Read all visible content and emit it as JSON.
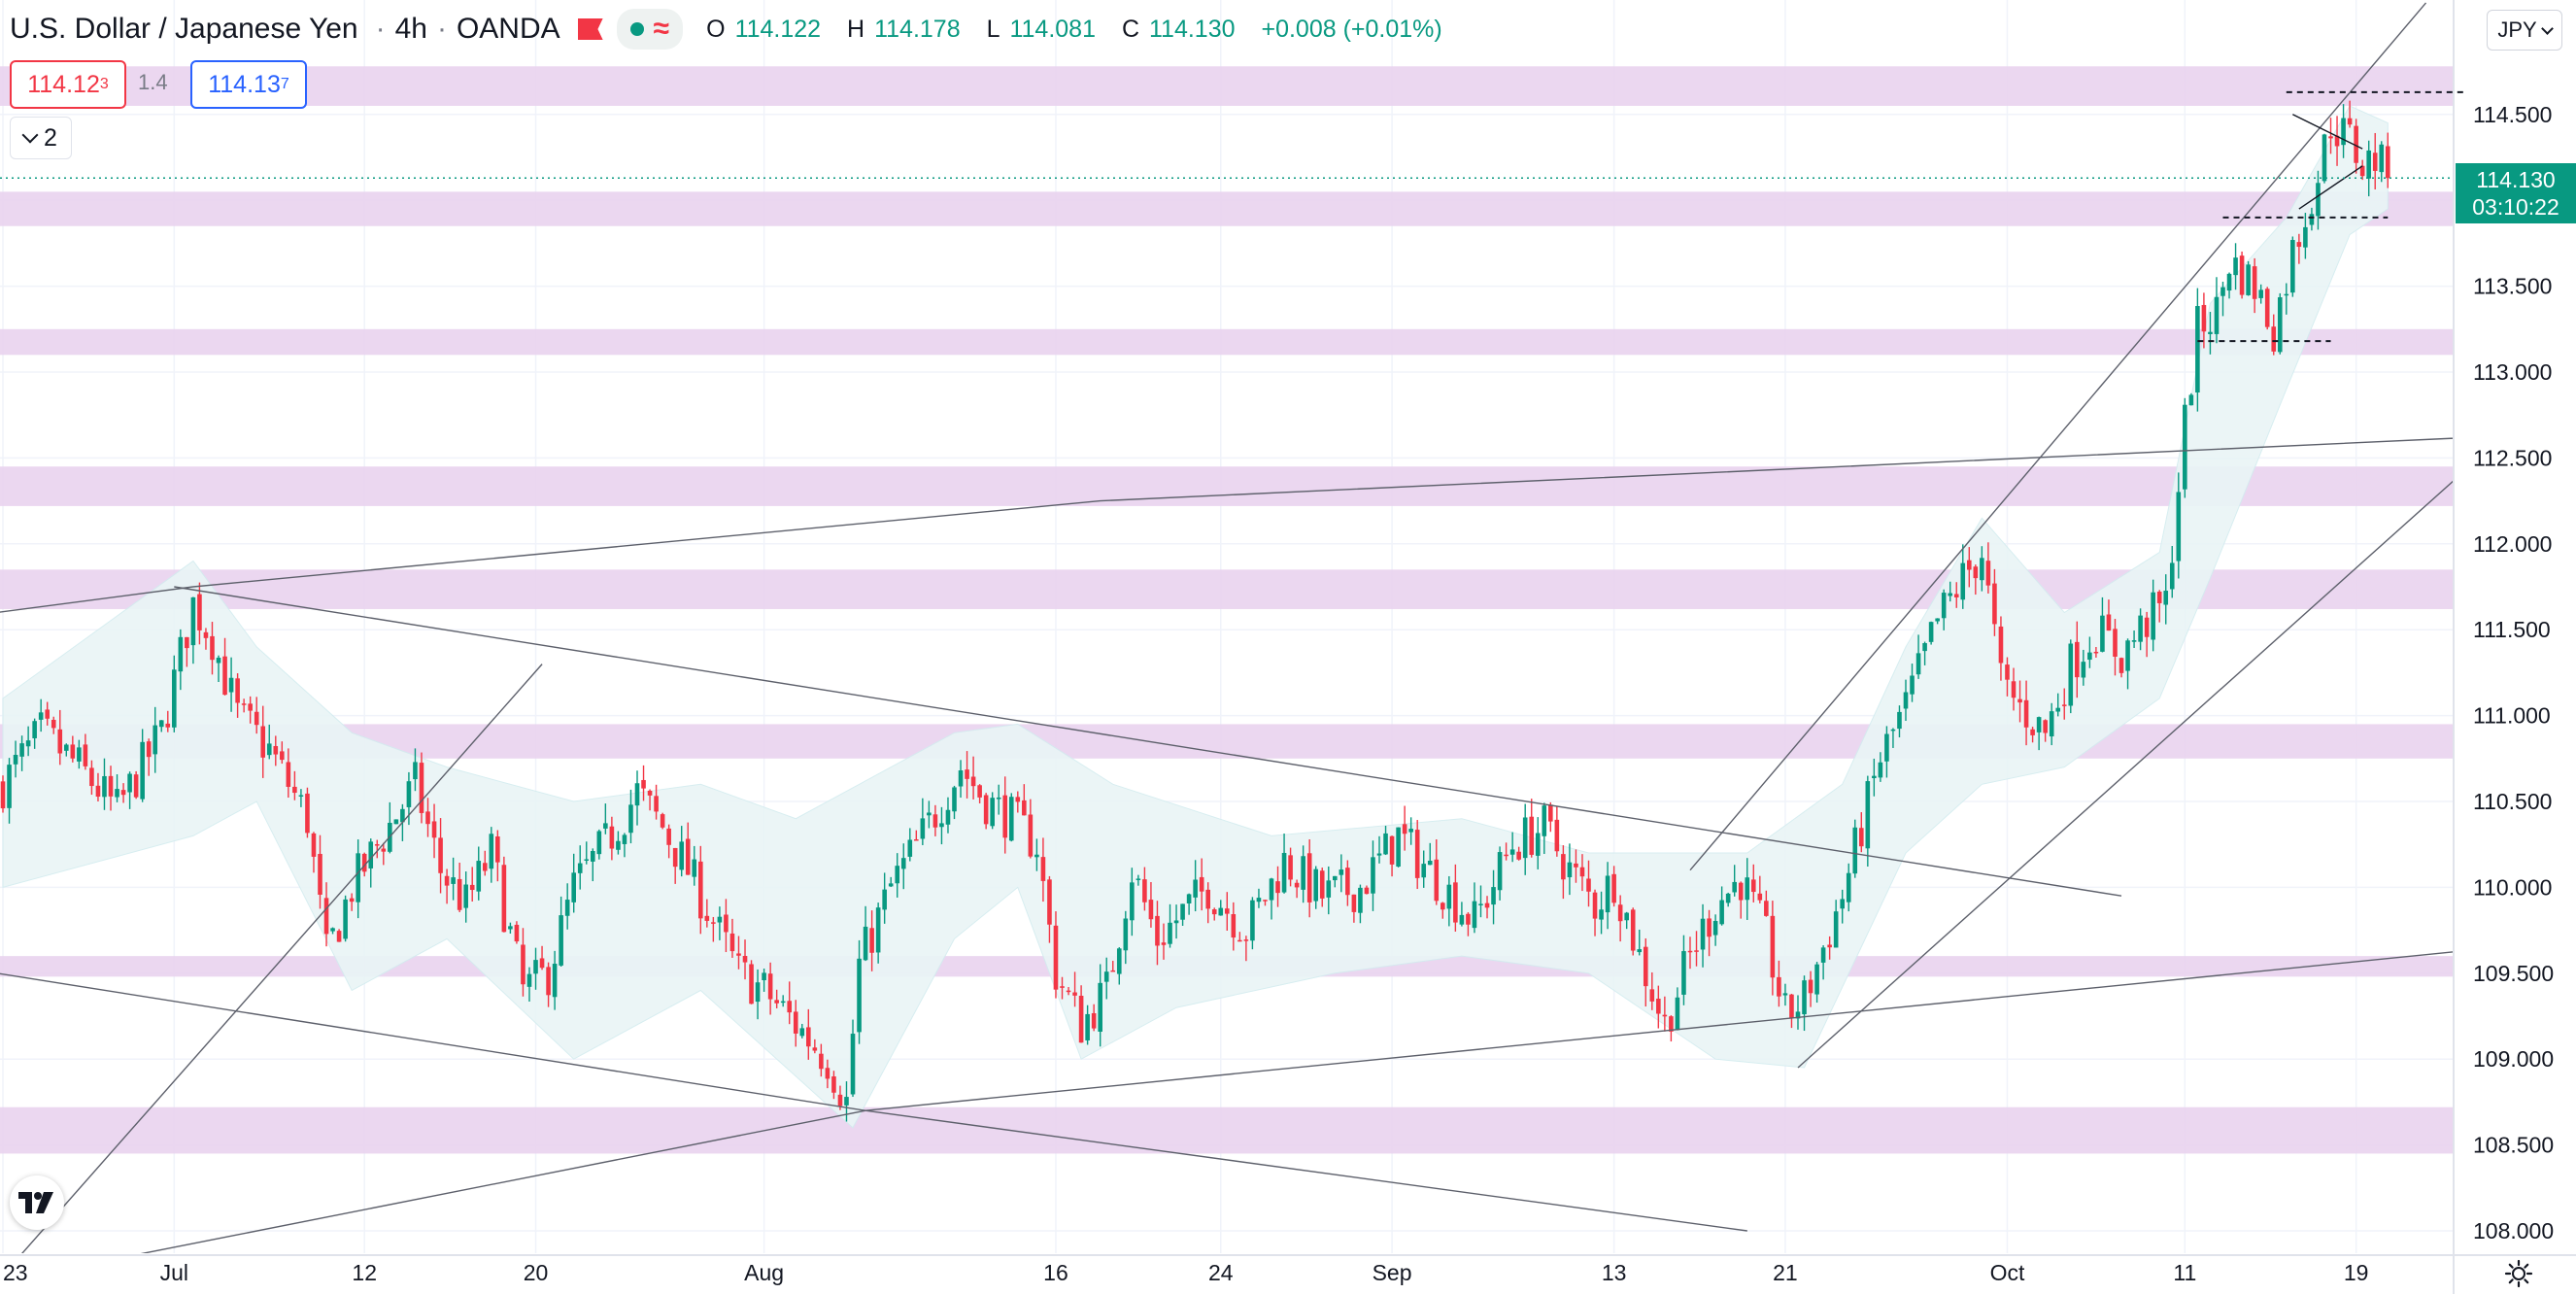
{
  "header": {
    "symbol": "U.S. Dollar / Japanese Yen",
    "interval": "4h",
    "broker": "OANDA",
    "open_label": "O",
    "open": "114.122",
    "high_label": "H",
    "high": "114.178",
    "low_label": "L",
    "low": "114.081",
    "close_label": "C",
    "close": "114.130",
    "change": "+0.008 (+0.01%)"
  },
  "quote": {
    "sell": "114.12",
    "sell_sup": "3",
    "spread": "1.4",
    "buy": "114.13",
    "buy_sup": "7"
  },
  "indicator_count": "2",
  "currency_button": "JPY",
  "price_label": {
    "price": "114.130",
    "countdown": "03:10:22"
  },
  "colors": {
    "up": "#089981",
    "down": "#f23645",
    "zone": "#e9d3ee",
    "band": "#e9f5f6",
    "line": "#787b86"
  },
  "icons": [
    "tradingview-logo-icon",
    "settings-gear-icon",
    "flag-icon",
    "chevron-down-icon"
  ],
  "chart_data": {
    "type": "candlestick",
    "title": "U.S. Dollar / Japanese Yen, 4h, OANDA",
    "xlabel": "",
    "ylabel": "",
    "ylim": [
      107.95,
      115.1
    ],
    "yticks": [
      "108.000",
      "108.500",
      "109.000",
      "109.500",
      "110.000",
      "110.500",
      "111.000",
      "111.500",
      "112.000",
      "112.500",
      "113.000",
      "113.500",
      "114.000",
      "114.500"
    ],
    "xticks": [
      "23",
      "Jul",
      "12",
      "20",
      "Aug",
      "16",
      "24",
      "Sep",
      "13",
      "21",
      "Oct",
      "11",
      "19"
    ],
    "xtick_index": [
      0,
      27,
      57,
      84,
      120,
      166,
      192,
      219,
      254,
      281,
      316,
      344,
      371
    ],
    "bars_total": 407,
    "current_price": 114.13,
    "path": [
      [
        0,
        110.6
      ],
      [
        6,
        110.9
      ],
      [
        12,
        110.7
      ],
      [
        18,
        110.45
      ],
      [
        25,
        110.9
      ],
      [
        30,
        111.65
      ],
      [
        33,
        111.45
      ],
      [
        37,
        111.0
      ],
      [
        42,
        110.8
      ],
      [
        48,
        110.4
      ],
      [
        51,
        109.6
      ],
      [
        55,
        110.0
      ],
      [
        60,
        110.3
      ],
      [
        65,
        110.6
      ],
      [
        69,
        110.1
      ],
      [
        73,
        109.9
      ],
      [
        77,
        110.2
      ],
      [
        82,
        109.4
      ],
      [
        86,
        109.5
      ],
      [
        90,
        110.0
      ],
      [
        95,
        110.25
      ],
      [
        100,
        110.55
      ],
      [
        104,
        110.35
      ],
      [
        108,
        110.1
      ],
      [
        112,
        109.8
      ],
      [
        116,
        109.5
      ],
      [
        120,
        109.4
      ],
      [
        125,
        109.2
      ],
      [
        130,
        109.0
      ],
      [
        133,
        108.75
      ],
      [
        135,
        109.55
      ],
      [
        140,
        110.0
      ],
      [
        145,
        110.3
      ],
      [
        151,
        110.7
      ],
      [
        155,
        110.5
      ],
      [
        159,
        110.4
      ],
      [
        163,
        110.25
      ],
      [
        166,
        109.5
      ],
      [
        170,
        109.2
      ],
      [
        174,
        109.4
      ],
      [
        178,
        110.1
      ],
      [
        182,
        109.7
      ],
      [
        186,
        109.85
      ],
      [
        190,
        110.0
      ],
      [
        196,
        109.75
      ],
      [
        202,
        110.15
      ],
      [
        208,
        109.95
      ],
      [
        214,
        110.0
      ],
      [
        220,
        110.3
      ],
      [
        226,
        110.05
      ],
      [
        232,
        109.8
      ],
      [
        238,
        110.25
      ],
      [
        243,
        110.35
      ],
      [
        247,
        110.1
      ],
      [
        251,
        109.9
      ],
      [
        254,
        110.05
      ],
      [
        258,
        109.6
      ],
      [
        262,
        109.2
      ],
      [
        266,
        109.6
      ],
      [
        270,
        109.9
      ],
      [
        274,
        110.05
      ],
      [
        278,
        109.7
      ],
      [
        281,
        109.25
      ],
      [
        284,
        109.35
      ],
      [
        290,
        109.95
      ],
      [
        296,
        110.75
      ],
      [
        300,
        111.05
      ],
      [
        305,
        111.55
      ],
      [
        309,
        111.8
      ],
      [
        312,
        111.95
      ],
      [
        315,
        111.2
      ],
      [
        318,
        111.05
      ],
      [
        322,
        110.9
      ],
      [
        326,
        111.3
      ],
      [
        330,
        111.5
      ],
      [
        334,
        111.35
      ],
      [
        338,
        111.55
      ],
      [
        341,
        111.65
      ],
      [
        344,
        112.7
      ],
      [
        346,
        113.25
      ],
      [
        349,
        113.35
      ],
      [
        351,
        113.65
      ],
      [
        355,
        113.5
      ],
      [
        358,
        113.25
      ],
      [
        361,
        113.7
      ],
      [
        365,
        114.15
      ],
      [
        367,
        114.45
      ],
      [
        370,
        114.35
      ],
      [
        372,
        114.2
      ],
      [
        374,
        114.25
      ],
      [
        376,
        114.13
      ]
    ],
    "bollinger": {
      "upper": [
        [
          0,
          111.1
        ],
        [
          30,
          111.9
        ],
        [
          40,
          111.4
        ],
        [
          55,
          110.9
        ],
        [
          70,
          110.7
        ],
        [
          90,
          110.5
        ],
        [
          110,
          110.6
        ],
        [
          125,
          110.4
        ],
        [
          150,
          110.9
        ],
        [
          160,
          110.95
        ],
        [
          175,
          110.6
        ],
        [
          200,
          110.3
        ],
        [
          230,
          110.4
        ],
        [
          250,
          110.2
        ],
        [
          275,
          110.2
        ],
        [
          290,
          110.6
        ],
        [
          300,
          111.4
        ],
        [
          312,
          112.15
        ],
        [
          325,
          111.6
        ],
        [
          340,
          111.95
        ],
        [
          348,
          113.4
        ],
        [
          360,
          113.9
        ],
        [
          370,
          114.55
        ],
        [
          376,
          114.45
        ]
      ],
      "lower": [
        [
          0,
          110.0
        ],
        [
          30,
          110.3
        ],
        [
          40,
          110.5
        ],
        [
          55,
          109.4
        ],
        [
          70,
          109.7
        ],
        [
          90,
          109.0
        ],
        [
          110,
          109.4
        ],
        [
          125,
          108.9
        ],
        [
          134,
          108.6
        ],
        [
          150,
          109.7
        ],
        [
          160,
          110.0
        ],
        [
          170,
          109.0
        ],
        [
          185,
          109.3
        ],
        [
          210,
          109.5
        ],
        [
          230,
          109.6
        ],
        [
          250,
          109.5
        ],
        [
          270,
          109.0
        ],
        [
          284,
          108.95
        ],
        [
          300,
          110.2
        ],
        [
          312,
          110.6
        ],
        [
          325,
          110.7
        ],
        [
          340,
          111.1
        ],
        [
          348,
          111.8
        ],
        [
          360,
          112.9
        ],
        [
          370,
          113.8
        ],
        [
          376,
          113.95
        ]
      ]
    },
    "zones": [
      [
        114.55,
        114.78
      ],
      [
        113.85,
        114.05
      ],
      [
        113.1,
        113.25
      ],
      [
        112.22,
        112.45
      ],
      [
        111.62,
        111.85
      ],
      [
        110.75,
        110.95
      ],
      [
        109.48,
        109.6
      ],
      [
        108.45,
        108.72
      ]
    ],
    "trendlines": [
      [
        [
          -1,
          111.6
        ],
        [
          30,
          111.75
        ],
        [
          173,
          112.25
        ],
        [
          407,
          112.65
        ]
      ],
      [
        [
          -1,
          107.7
        ],
        [
          85,
          111.3
        ]
      ],
      [
        [
          -1,
          109.5
        ],
        [
          136,
          108.7
        ],
        [
          275,
          108.0
        ]
      ],
      [
        [
          -1,
          107.7
        ],
        [
          136,
          108.7
        ],
        [
          407,
          109.7
        ]
      ],
      [
        [
          27,
          111.75
        ],
        [
          334,
          109.95
        ]
      ],
      [
        [
          266,
          110.1
        ],
        [
          382,
          115.15
        ]
      ],
      [
        [
          283,
          108.95
        ],
        [
          404,
          112.95
        ]
      ]
    ],
    "dashed_levels": [
      {
        "x": [
          360,
          388
        ],
        "price": 114.63
      },
      {
        "x": [
          350,
          376
        ],
        "price": 113.9
      },
      {
        "x": [
          346,
          367
        ],
        "price": 113.18
      }
    ],
    "triangle": [
      [
        [
          361,
          114.5
        ],
        [
          372,
          114.3
        ]
      ],
      [
        [
          362,
          113.95
        ],
        [
          372,
          114.2
        ]
      ]
    ]
  }
}
